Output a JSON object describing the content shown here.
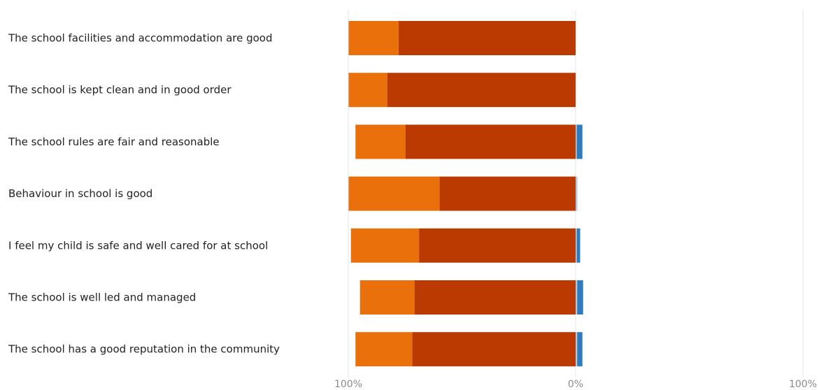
{
  "chart_data": {
    "type": "bar",
    "orientation": "horizontal",
    "stacking": "diverging",
    "categories": [
      "The school facilities and accommodation are good",
      "The school is kept clean and in good order",
      "The school rules are fair and reasonable",
      "Behaviour in school is good",
      "I feel my child is safe and well cared for at school",
      "The school is well led and managed",
      "The school has a good reputation in the community"
    ],
    "series": [
      {
        "color": "#bb3a02",
        "side": "negative",
        "values": [
          78,
          83,
          75,
          60,
          69,
          71,
          72
        ]
      },
      {
        "color": "#e9700a",
        "side": "negative",
        "values": [
          22,
          17,
          22,
          40,
          30,
          24,
          25
        ]
      },
      {
        "color": "#a9cce8",
        "side": "positive",
        "values": [
          0,
          0,
          0.5,
          0.8,
          0.5,
          0.7,
          0.7
        ]
      },
      {
        "color": "#2f7bbd",
        "side": "positive",
        "values": [
          0,
          0,
          2.5,
          0,
          1.5,
          2.6,
          2.3
        ]
      }
    ],
    "x_ticks": [
      "100%",
      "0%",
      "100%"
    ],
    "xlim": [
      -100,
      100
    ],
    "grid": true,
    "legend": "none"
  }
}
